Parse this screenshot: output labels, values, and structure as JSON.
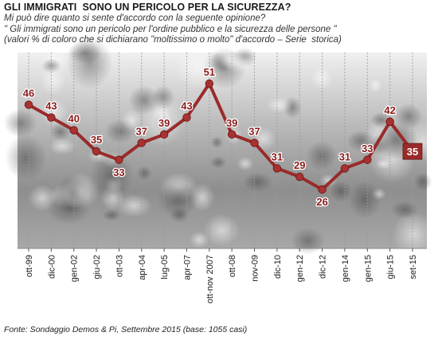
{
  "title": "GLI IMMIGRATI  SONO UN PERICOLO PER LA SICUREZZA?",
  "subtitle_lines": [
    "Mi può dire quanto si sente d'accordo con la seguente opinione?",
    "\" Gli immigrati sono un pericolo per l'ordine pubblico e la sicurezza delle persone \"",
    "(valori % di coloro che si dichiarano \"moltissimo o molto\" d'accordo – Serie  storica)"
  ],
  "source": "Fonte: Sondaggio Demos & Pi, Settembre 2015 (base: 1055 casi)",
  "colors": {
    "line": "#9a2b2b",
    "marker": "#a83232",
    "label": "#8b1c1c",
    "highlight_fill": "#9a2b2b",
    "highlight_text": "#ffffff",
    "grid": "#9a9a9a",
    "photo_light": "#d9d9d9",
    "photo_dark": "#6e6e6e"
  },
  "chart_data": {
    "type": "line",
    "categories": [
      "ott-99",
      "dic-00",
      "gen-02",
      "giu-02",
      "ott-03",
      "apr-04",
      "lug-05",
      "apr-07",
      "ott-nov 2007",
      "ott-08",
      "nov-09",
      "dic-10",
      "gen-12",
      "dic-12",
      "gen-14",
      "gen-15",
      "giu-15",
      "set-15"
    ],
    "values": [
      46,
      43,
      40,
      35,
      33,
      37,
      39,
      43,
      51,
      39,
      37,
      31,
      29,
      26,
      31,
      33,
      42,
      35
    ],
    "highlight_last": true,
    "ylim": [
      20,
      56
    ],
    "grid": "vertical",
    "background": "photo"
  }
}
